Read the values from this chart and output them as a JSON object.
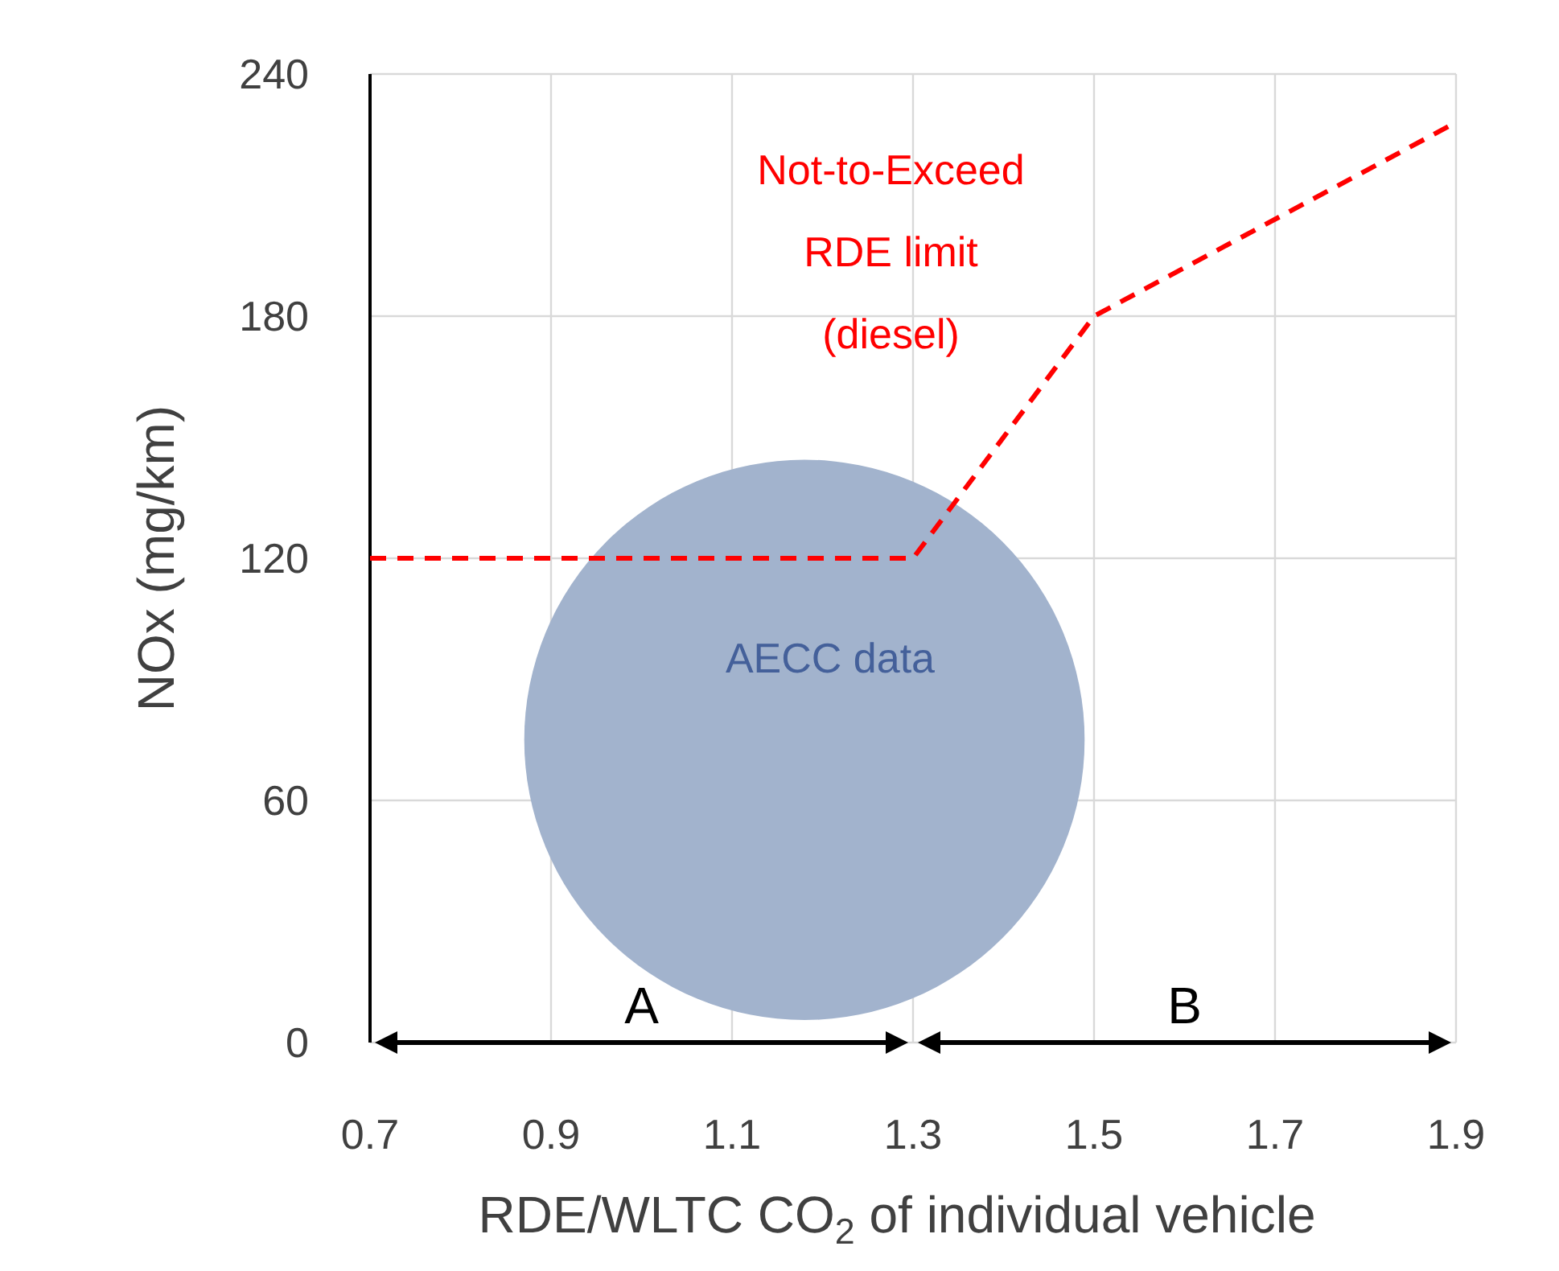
{
  "chart_data": {
    "type": "line",
    "xlabel": "RDE/WLTC CO$_{2}$ of individual vehicle",
    "ylabel": "NOx (mg/km)",
    "xlim": [
      0.7,
      1.9
    ],
    "xticks": [
      0.7,
      0.9,
      1.1,
      1.3,
      1.5,
      1.7,
      1.9
    ],
    "ylim": [
      0,
      240
    ],
    "yticks": [
      0,
      60,
      120,
      180,
      240
    ],
    "grid": true,
    "series": [
      {
        "name": "Not-to-Exceed RDE limit (diesel)",
        "color": "#ff0000",
        "line_style": "dashed",
        "marker": "none",
        "x": [
          0.7,
          1.3,
          1.5,
          1.9
        ],
        "values": [
          120,
          120,
          180,
          228
        ]
      },
      {
        "name": "AECC data",
        "type": "bubble",
        "color": "#a2b3cd",
        "x": [
          1.18
        ],
        "values": [
          75
        ],
        "sizes": [
          1
        ]
      }
    ],
    "annotations": [
      "A",
      "B"
    ]
  }
}
